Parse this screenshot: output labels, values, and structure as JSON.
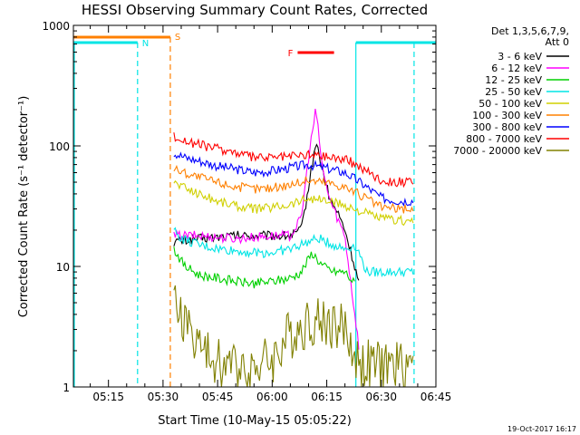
{
  "chart_data": {
    "type": "line",
    "title": "HESSI Observing Summary Count Rates, Corrected",
    "xlabel": "Start Time (10-May-15 05:05:22)",
    "ylabel": "Corrected Count Rate (s⁻¹ detector⁻¹)",
    "ylog": true,
    "ylim": [
      1,
      1000
    ],
    "xlim": [
      "05:05:22",
      "06:45:00"
    ],
    "x_ticks": [
      "05:15",
      "05:30",
      "05:45",
      "06:00",
      "06:15",
      "06:30",
      "06:45"
    ],
    "y_ticks": [
      "1",
      "10",
      "100",
      "1000"
    ],
    "legend": {
      "placement": "right",
      "header": [
        "Det 1,3,5,6,7,9,",
        "Att 0"
      ]
    },
    "footer_stamp": "19-Oct-2017 16:17",
    "flags": {
      "night_marker": {
        "label": "N",
        "color": "#00e5e5"
      },
      "saa_marker": {
        "label": "S",
        "color": "#ff8000"
      },
      "flare_marker": {
        "label": "F",
        "color": "#ff0000"
      }
    },
    "series": [
      {
        "name": "3 - 6 keV",
        "color": "#000000",
        "points": [
          [
            "05:33",
            16
          ],
          [
            "05:40",
            17
          ],
          [
            "05:50",
            18
          ],
          [
            "06:00",
            18
          ],
          [
            "06:05",
            18
          ],
          [
            "06:08",
            20
          ],
          [
            "06:10",
            45
          ],
          [
            "06:12",
            110
          ],
          [
            "06:14",
            60
          ],
          [
            "06:16",
            35
          ],
          [
            "06:18",
            28
          ],
          [
            "06:20",
            20
          ],
          [
            "06:22",
            12
          ],
          [
            "06:24",
            7
          ]
        ]
      },
      {
        "name": "6 - 12 keV",
        "color": "#ff00ff",
        "points": [
          [
            "05:33",
            18
          ],
          [
            "05:40",
            18
          ],
          [
            "05:50",
            17
          ],
          [
            "06:00",
            18
          ],
          [
            "06:05",
            18
          ],
          [
            "06:08",
            25
          ],
          [
            "06:10",
            80
          ],
          [
            "06:12",
            200
          ],
          [
            "06:14",
            60
          ],
          [
            "06:16",
            35
          ],
          [
            "06:18",
            25
          ],
          [
            "06:20",
            18
          ],
          [
            "06:22",
            6
          ],
          [
            "06:24",
            2
          ]
        ]
      },
      {
        "name": "12 - 25 keV",
        "color": "#00d000",
        "points": [
          [
            "05:33",
            14
          ],
          [
            "05:36",
            10
          ],
          [
            "05:40",
            8.5
          ],
          [
            "05:45",
            8
          ],
          [
            "05:50",
            7.5
          ],
          [
            "05:55",
            7.2
          ],
          [
            "06:00",
            7.5
          ],
          [
            "06:05",
            8
          ],
          [
            "06:08",
            9
          ],
          [
            "06:11",
            13
          ],
          [
            "06:14",
            10
          ],
          [
            "06:17",
            9
          ],
          [
            "06:20",
            9
          ],
          [
            "06:23",
            7
          ]
        ]
      },
      {
        "name": "25 - 50 keV",
        "color": "#00e5e5",
        "points": [
          [
            "05:33",
            20
          ],
          [
            "05:35",
            17
          ],
          [
            "05:40",
            15
          ],
          [
            "05:45",
            14
          ],
          [
            "05:50",
            13.5
          ],
          [
            "05:55",
            13
          ],
          [
            "06:00",
            13
          ],
          [
            "06:05",
            14
          ],
          [
            "06:10",
            16
          ],
          [
            "06:13",
            17
          ],
          [
            "06:17",
            15
          ],
          [
            "06:20",
            14
          ],
          [
            "06:23",
            15
          ],
          [
            "06:26",
            9
          ],
          [
            "06:30",
            9
          ],
          [
            "06:35",
            9
          ],
          [
            "06:39",
            9
          ]
        ]
      },
      {
        "name": "50 - 100 keV",
        "color": "#d0d000",
        "points": [
          [
            "05:33",
            50
          ],
          [
            "05:36",
            45
          ],
          [
            "05:40",
            40
          ],
          [
            "05:45",
            35
          ],
          [
            "05:50",
            32
          ],
          [
            "05:55",
            30
          ],
          [
            "06:00",
            31
          ],
          [
            "06:05",
            33
          ],
          [
            "06:10",
            37
          ],
          [
            "06:15",
            35
          ],
          [
            "06:20",
            32
          ],
          [
            "06:25",
            28
          ],
          [
            "06:30",
            25
          ],
          [
            "06:35",
            24
          ],
          [
            "06:39",
            24
          ]
        ]
      },
      {
        "name": "100 - 300 keV",
        "color": "#ff8000",
        "points": [
          [
            "05:33",
            65
          ],
          [
            "05:36",
            60
          ],
          [
            "05:40",
            55
          ],
          [
            "05:45",
            50
          ],
          [
            "05:50",
            46
          ],
          [
            "05:55",
            44
          ],
          [
            "06:00",
            45
          ],
          [
            "06:05",
            48
          ],
          [
            "06:10",
            52
          ],
          [
            "06:15",
            50
          ],
          [
            "06:20",
            46
          ],
          [
            "06:25",
            38
          ],
          [
            "06:30",
            31
          ],
          [
            "06:35",
            30
          ],
          [
            "06:39",
            30
          ]
        ]
      },
      {
        "name": "300 - 800 keV",
        "color": "#0000ff",
        "points": [
          [
            "05:33",
            88
          ],
          [
            "05:36",
            80
          ],
          [
            "05:40",
            75
          ],
          [
            "05:45",
            68
          ],
          [
            "05:50",
            64
          ],
          [
            "05:55",
            60
          ],
          [
            "06:00",
            62
          ],
          [
            "06:05",
            66
          ],
          [
            "06:10",
            70
          ],
          [
            "06:15",
            65
          ],
          [
            "06:20",
            60
          ],
          [
            "06:25",
            48
          ],
          [
            "06:30",
            37
          ],
          [
            "06:35",
            35
          ],
          [
            "06:39",
            35
          ]
        ]
      },
      {
        "name": "800 - 7000 keV",
        "color": "#ff0000",
        "points": [
          [
            "05:33",
            120
          ],
          [
            "05:36",
            110
          ],
          [
            "05:40",
            102
          ],
          [
            "05:45",
            95
          ],
          [
            "05:50",
            88
          ],
          [
            "05:55",
            80
          ],
          [
            "06:00",
            80
          ],
          [
            "06:05",
            82
          ],
          [
            "06:10",
            85
          ],
          [
            "06:15",
            82
          ],
          [
            "06:20",
            78
          ],
          [
            "06:25",
            65
          ],
          [
            "06:30",
            52
          ],
          [
            "06:35",
            50
          ],
          [
            "06:39",
            50
          ]
        ]
      },
      {
        "name": "7000 - 20000 keV",
        "color": "#808000",
        "points": [
          [
            "05:33",
            5
          ],
          [
            "05:36",
            3.5
          ],
          [
            "05:39",
            2.5
          ],
          [
            "05:42",
            1.8
          ],
          [
            "05:45",
            1.6
          ],
          [
            "05:50",
            1.5
          ],
          [
            "05:55",
            1.5
          ],
          [
            "06:00",
            1.7
          ],
          [
            "06:05",
            2.8
          ],
          [
            "06:10",
            3.5
          ],
          [
            "06:15",
            3.5
          ],
          [
            "06:20",
            3
          ],
          [
            "06:24",
            1.5
          ],
          [
            "06:28",
            1.5
          ],
          [
            "06:33",
            1.5
          ],
          [
            "06:38",
            1.5
          ],
          [
            "06:39",
            2.5
          ]
        ]
      }
    ]
  }
}
